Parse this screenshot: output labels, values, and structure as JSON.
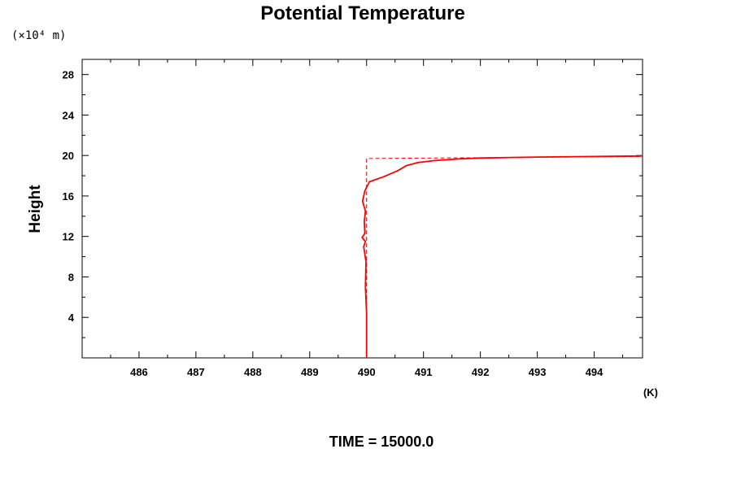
{
  "chart_data": {
    "type": "line",
    "title": "Potential Temperature",
    "ylabel": "Height",
    "y_unit": "(×10⁴ m)",
    "x_unit": "(K)",
    "footer": "TIME = 15000.0",
    "xlim": [
      485.0,
      494.85
    ],
    "ylim": [
      0,
      29.5
    ],
    "x_ticks": [
      486,
      487,
      488,
      489,
      490,
      491,
      492,
      493,
      494
    ],
    "y_ticks": [
      4,
      8,
      12,
      16,
      20,
      24,
      28
    ],
    "grid": false,
    "series": [
      {
        "style": "dashed",
        "color": "#ff0000",
        "points": [
          [
            490.0,
            0
          ],
          [
            490.0,
            19.7
          ],
          [
            494.85,
            19.9
          ]
        ]
      },
      {
        "style": "solid",
        "color": "#ff0000",
        "points": [
          [
            490.0,
            0
          ],
          [
            490.0,
            4.5
          ],
          [
            489.98,
            7.0
          ],
          [
            489.99,
            9.5
          ],
          [
            489.95,
            11.0
          ],
          [
            489.98,
            11.5
          ],
          [
            489.92,
            11.9
          ],
          [
            489.97,
            12.3
          ],
          [
            489.96,
            13.5
          ],
          [
            489.98,
            14.5
          ],
          [
            489.93,
            15.5
          ],
          [
            489.97,
            16.5
          ],
          [
            490.05,
            17.4
          ],
          [
            490.3,
            17.9
          ],
          [
            490.55,
            18.5
          ],
          [
            490.7,
            19.0
          ],
          [
            490.9,
            19.3
          ],
          [
            491.2,
            19.5
          ],
          [
            491.6,
            19.65
          ],
          [
            492.0,
            19.75
          ],
          [
            493.0,
            19.85
          ],
          [
            494.0,
            19.9
          ],
          [
            494.85,
            19.95
          ]
        ]
      }
    ]
  }
}
